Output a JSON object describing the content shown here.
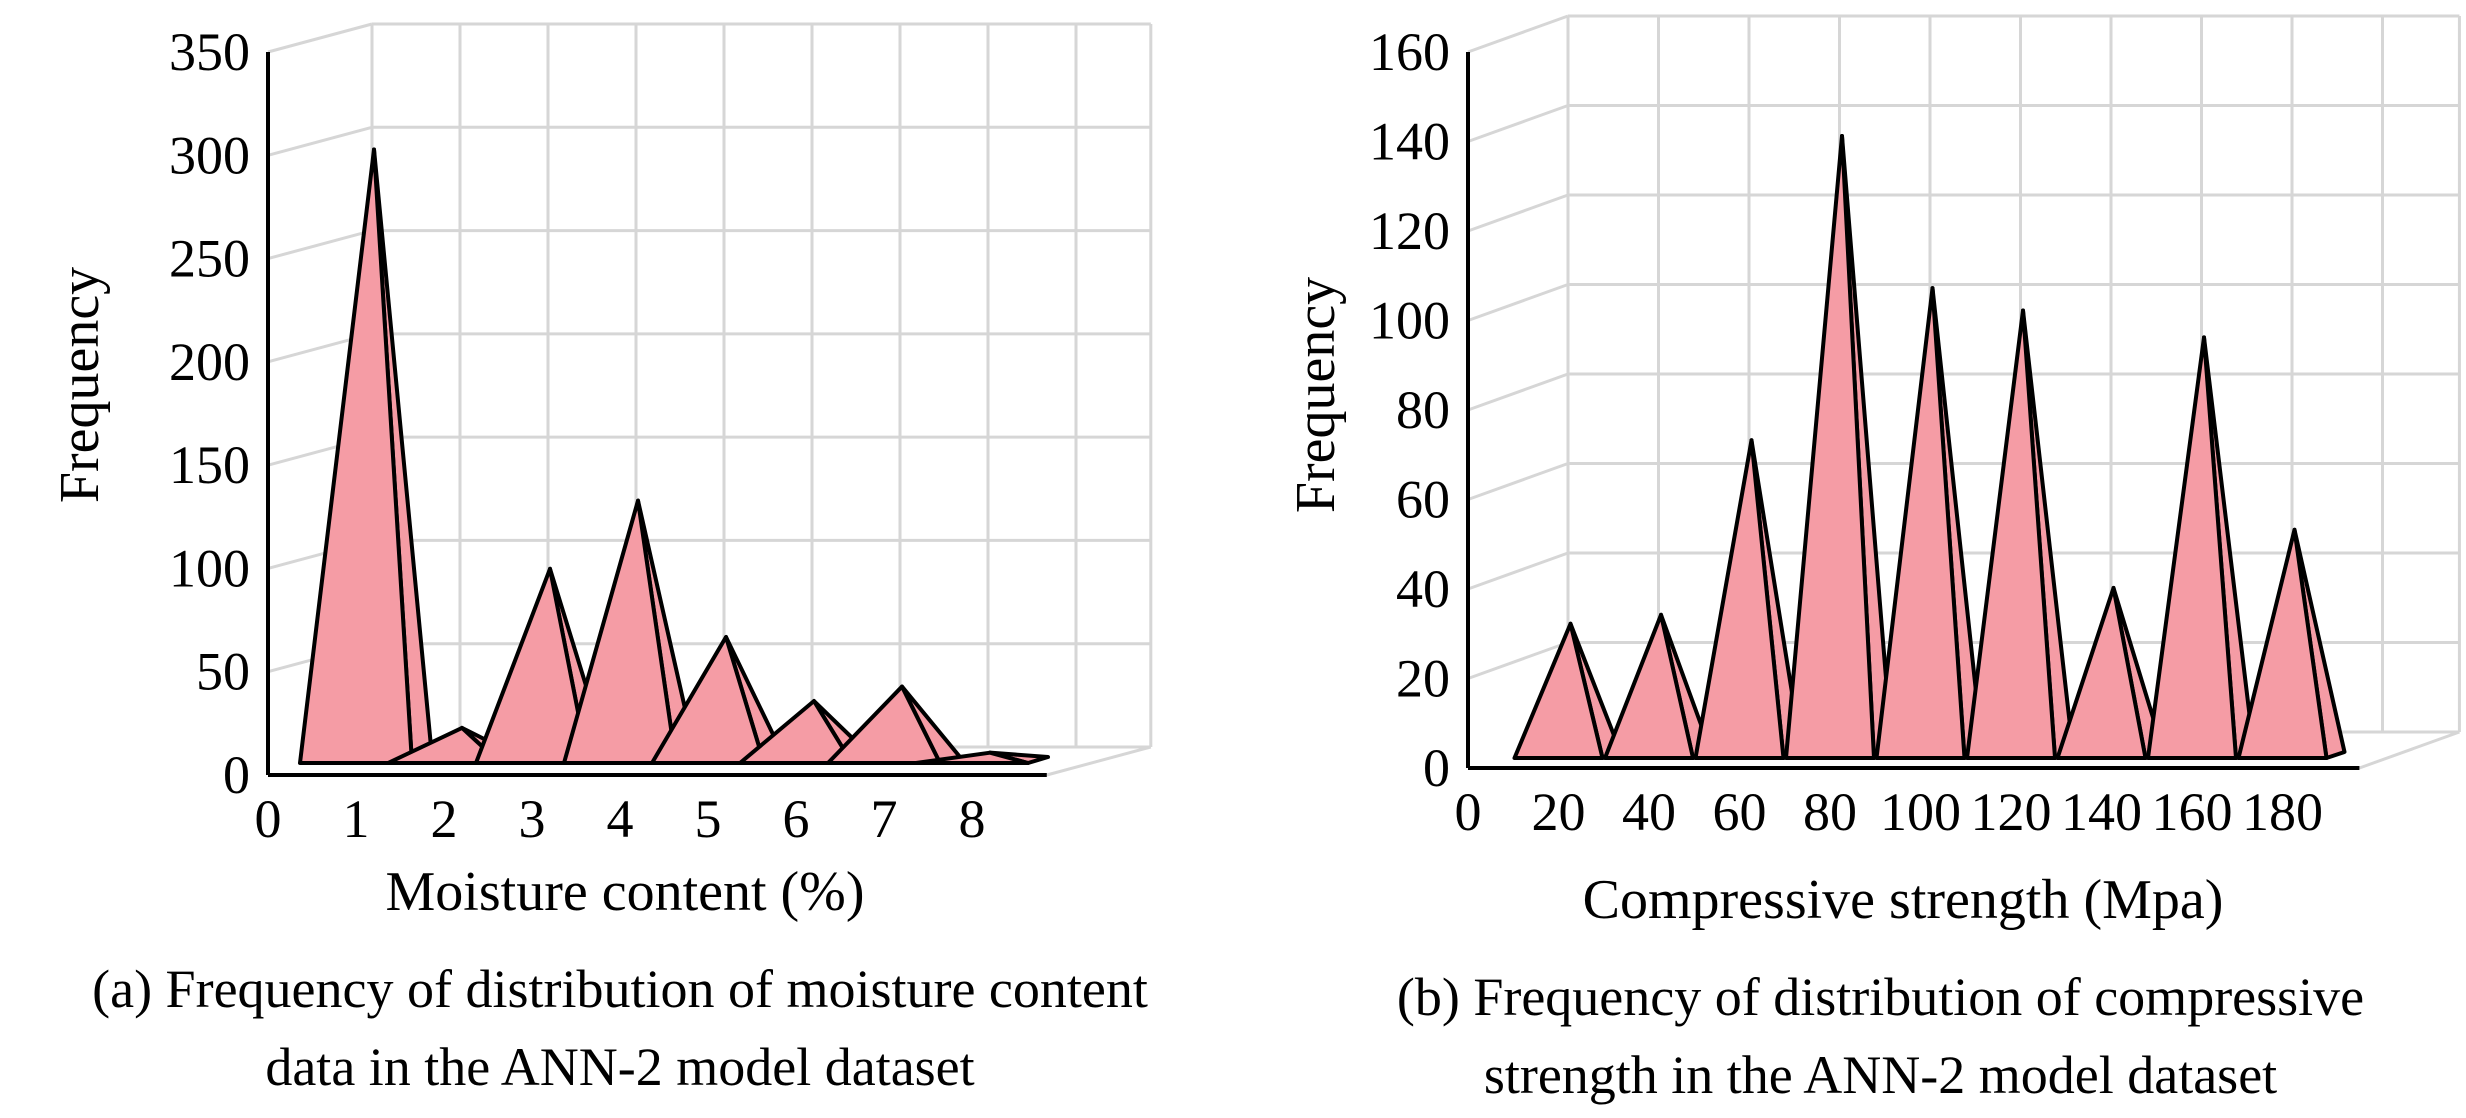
{
  "chart_data": [
    {
      "type": "bar",
      "mark": "3d-cone",
      "categories": [
        1,
        2,
        3,
        4,
        5,
        6,
        7,
        8
      ],
      "values": [
        297,
        17,
        94,
        127,
        61,
        30,
        37,
        5
      ],
      "xlabel": "Moisture content (%)",
      "ylabel": "Frequency",
      "xticks": [
        0,
        1,
        2,
        3,
        4,
        5,
        6,
        7,
        8
      ],
      "yticks": [
        0,
        50,
        100,
        150,
        200,
        250,
        300,
        350
      ],
      "ylim": [
        0,
        350
      ],
      "grid": true,
      "bar_color": "#f59ca5",
      "caption_lines": [
        "(a) Frequency of distribution of moisture content",
        "data in the ANN-2 model dataset"
      ]
    },
    {
      "type": "bar",
      "mark": "3d-cone",
      "categories": [
        20,
        40,
        60,
        80,
        100,
        120,
        140,
        160,
        180
      ],
      "values": [
        30,
        32,
        71,
        139,
        105,
        100,
        38,
        94,
        51
      ],
      "xlabel": "Compressive strength (Mpa)",
      "ylabel": "Frequency",
      "xticks": [
        0,
        20,
        40,
        60,
        80,
        100,
        120,
        140,
        160,
        180
      ],
      "yticks": [
        0,
        20,
        40,
        60,
        80,
        100,
        120,
        140,
        160
      ],
      "ylim": [
        0,
        160
      ],
      "grid": true,
      "bar_color": "#f59ca5",
      "caption_lines": [
        "(b) Frequency of distribution of compressive",
        "strength in the ANN-2 model dataset"
      ]
    }
  ]
}
